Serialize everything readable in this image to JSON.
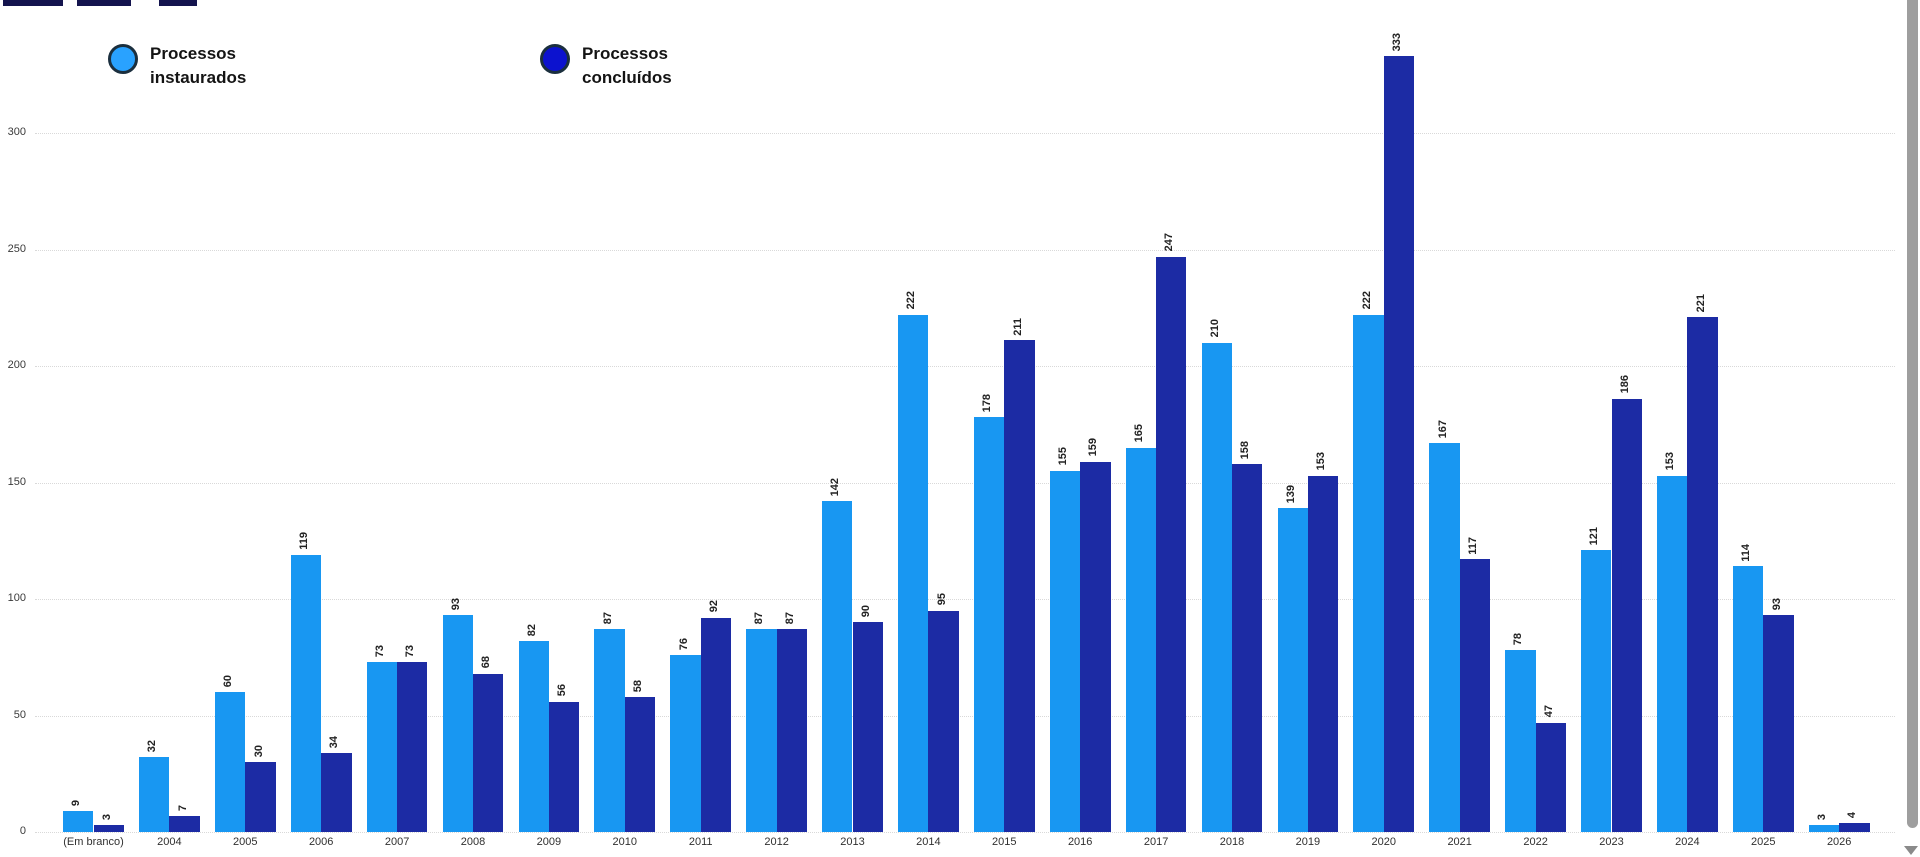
{
  "page": {
    "background": "#ffffff",
    "clipped_title_note": "title text cut off at top edge of viewport"
  },
  "legend": {
    "items": [
      {
        "label": "Processos instaurados",
        "color": "#29a2ff"
      },
      {
        "label": "Processos concluídos",
        "color": "#0c12cf"
      }
    ]
  },
  "chart_data": {
    "type": "bar",
    "title": "",
    "xlabel": "",
    "ylabel": "",
    "grid": "horizontal dotted",
    "legend_position": "top-left",
    "ylim": [
      0,
      340
    ],
    "y_ticks": [
      0,
      50,
      100,
      150,
      200,
      250,
      300
    ],
    "categories": [
      "(Em branco)",
      "2004",
      "2005",
      "2006",
      "2007",
      "2008",
      "2009",
      "2010",
      "2011",
      "2012",
      "2013",
      "2014",
      "2015",
      "2016",
      "2017",
      "2018",
      "2019",
      "2020",
      "2021",
      "2022",
      "2023",
      "2024",
      "2025",
      "2026"
    ],
    "series": [
      {
        "name": "Processos instaurados",
        "color": "#1897f2",
        "values": [
          9,
          32,
          60,
          119,
          73,
          93,
          82,
          87,
          76,
          87,
          142,
          222,
          178,
          155,
          165,
          210,
          139,
          222,
          167,
          78,
          121,
          153,
          114,
          3
        ]
      },
      {
        "name": "Processos concluídos",
        "color": "#1c2ba4",
        "values": [
          3,
          7,
          30,
          34,
          73,
          68,
          56,
          58,
          92,
          87,
          90,
          95,
          211,
          159,
          247,
          158,
          153,
          333,
          117,
          47,
          186,
          221,
          93,
          4
        ]
      }
    ],
    "data_labels": "rotated 90° above each bar"
  },
  "scrollbar": {
    "side": "right",
    "thumb_color": "#9e9e9e",
    "arrow": "down"
  }
}
